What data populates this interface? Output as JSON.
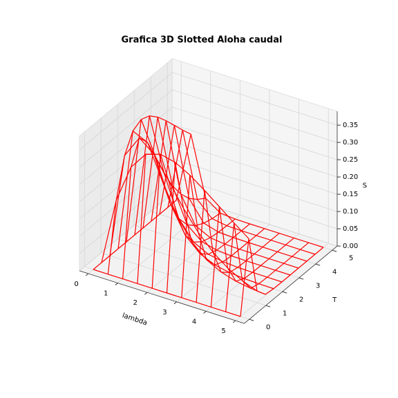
{
  "chart_data": {
    "type": "wireframe",
    "title": "Grafica 3D Slotted Aloha caudal",
    "xlabel": "lambda",
    "ylabel": "T",
    "zlabel": "S",
    "color": "#ff0000",
    "x": [
      0,
      0.5,
      1,
      1.5,
      2,
      2.5,
      3,
      3.5,
      4,
      4.5,
      5
    ],
    "y": [
      0,
      0.5,
      1,
      1.5,
      2,
      2.5,
      3,
      3.5,
      4,
      4.5,
      5
    ],
    "z": [
      [
        0,
        0,
        0,
        0,
        0,
        0,
        0,
        0,
        0,
        0,
        0
      ],
      [
        0,
        0.1947,
        0.3033,
        0.3543,
        0.3679,
        0.3581,
        0.3347,
        0.3041,
        0.2707,
        0.2371,
        0.2052
      ],
      [
        0,
        0.3033,
        0.3679,
        0.3347,
        0.2707,
        0.2052,
        0.1494,
        0.1057,
        0.0733,
        0.05,
        0.0337
      ],
      [
        0,
        0.3543,
        0.3347,
        0.2371,
        0.1494,
        0.0882,
        0.05,
        0.0276,
        0.0149,
        0.0079,
        0.0041
      ],
      [
        0,
        0.3679,
        0.2707,
        0.1494,
        0.0733,
        0.0337,
        0.0149,
        0.0064,
        0.0027,
        0.0011,
        0.0005
      ],
      [
        0,
        0.3581,
        0.2052,
        0.0882,
        0.0337,
        0.0121,
        0.0041,
        0.0014,
        0.0005,
        0.0001,
        0
      ],
      [
        0,
        0.3347,
        0.1494,
        0.05,
        0.0149,
        0.0041,
        0.0011,
        0.0003,
        0.0001,
        0,
        0
      ],
      [
        0,
        0.3041,
        0.1057,
        0.0276,
        0.0064,
        0.0014,
        0.0003,
        0.0001,
        0,
        0,
        0
      ],
      [
        0,
        0.2707,
        0.0733,
        0.0149,
        0.0027,
        0.0005,
        0.0001,
        0,
        0,
        0,
        0
      ],
      [
        0,
        0.2371,
        0.05,
        0.0079,
        0.0011,
        0.0001,
        0,
        0,
        0,
        0,
        0
      ],
      [
        0,
        0.2052,
        0.0337,
        0.0041,
        0.0005,
        0,
        0,
        0,
        0,
        0,
        0
      ]
    ],
    "xlim": [
      -0.3,
      5.3
    ],
    "ylim": [
      -0.3,
      5.3
    ],
    "zlim": [
      0,
      0.39
    ],
    "xticks": [
      0,
      1,
      2,
      3,
      4,
      5
    ],
    "yticks": [
      0,
      1,
      2,
      3,
      4,
      5
    ],
    "zticks": [
      {
        "value": 0,
        "label": "0.00"
      },
      {
        "value": 0.05,
        "label": "0.05"
      },
      {
        "value": 0.1,
        "label": "0.10"
      },
      {
        "value": 0.15,
        "label": "0.15"
      },
      {
        "value": 0.2,
        "label": "0.20"
      },
      {
        "value": 0.25,
        "label": "0.25"
      },
      {
        "value": 0.3,
        "label": "0.30"
      },
      {
        "value": 0.35,
        "label": "0.35"
      }
    ],
    "grid": true
  }
}
